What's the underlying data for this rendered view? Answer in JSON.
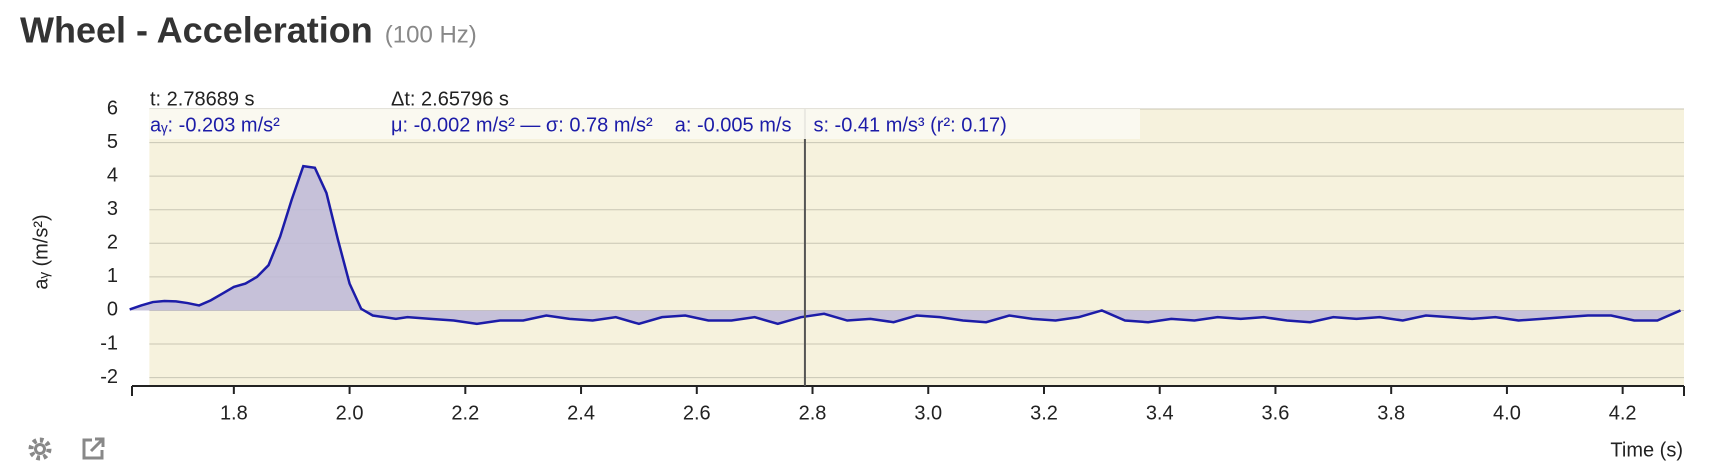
{
  "chart_data": {
    "type": "area",
    "title": "Wheel - Acceleration",
    "subtitle": "(100 Hz)",
    "y_label": "aᵧ (m/s²)",
    "x_label": "Time (s)",
    "readout": {
      "t": "t: 2.78689 s",
      "value": "aᵧ: -0.203 m/s²",
      "dt": "Δt: 2.65796 s",
      "stats": [
        "μ: -0.002 m/s² — σ: 0.78 m/s²",
        "a: -0.005 m/s",
        "s: -0.41 m/s³ (r²: 0.17)"
      ]
    },
    "cursor_x": 2.78689,
    "selection_xlim": [
      1.654,
      4.306
    ],
    "color": "#1c1ca8",
    "fill": "#bdb9d8",
    "xlim": [
      1.624,
      4.306
    ],
    "ylim": [
      -2.25,
      6
    ],
    "xticks": [
      1.8,
      {
        "value": 2,
        "label": "2.0"
      },
      2.2,
      2.4,
      2.6,
      2.8,
      {
        "value": 3,
        "label": "3.0"
      },
      3.2,
      3.4,
      3.6,
      3.8,
      {
        "value": 4,
        "label": "4.0"
      },
      4.2
    ],
    "yticks": [
      -2,
      -1,
      0,
      1,
      2,
      3,
      4,
      5,
      6
    ],
    "grid": true,
    "x": [
      1.62,
      1.64,
      1.66,
      1.68,
      1.7,
      1.72,
      1.74,
      1.76,
      1.78,
      1.8,
      1.82,
      1.84,
      1.86,
      1.88,
      1.9,
      1.92,
      1.94,
      1.96,
      1.98,
      2.0,
      2.02,
      2.04,
      2.06,
      2.08,
      2.1,
      2.14,
      2.18,
      2.22,
      2.26,
      2.3,
      2.34,
      2.38,
      2.42,
      2.46,
      2.5,
      2.54,
      2.58,
      2.62,
      2.66,
      2.7,
      2.74,
      2.78,
      2.82,
      2.86,
      2.9,
      2.94,
      2.98,
      3.02,
      3.06,
      3.1,
      3.14,
      3.18,
      3.22,
      3.26,
      3.3,
      3.34,
      3.38,
      3.42,
      3.46,
      3.5,
      3.54,
      3.58,
      3.62,
      3.66,
      3.7,
      3.74,
      3.78,
      3.82,
      3.86,
      3.9,
      3.94,
      3.98,
      4.02,
      4.06,
      4.1,
      4.14,
      4.18,
      4.22,
      4.26,
      4.3
    ],
    "values": [
      0.03,
      0.15,
      0.25,
      0.28,
      0.27,
      0.22,
      0.15,
      0.3,
      0.5,
      0.7,
      0.8,
      1.0,
      1.35,
      2.2,
      3.3,
      4.3,
      4.25,
      3.5,
      2.1,
      0.8,
      0.05,
      -0.15,
      -0.2,
      -0.25,
      -0.2,
      -0.25,
      -0.3,
      -0.4,
      -0.3,
      -0.3,
      -0.15,
      -0.25,
      -0.3,
      -0.2,
      -0.4,
      -0.2,
      -0.15,
      -0.3,
      -0.3,
      -0.2,
      -0.4,
      -0.2,
      -0.1,
      -0.3,
      -0.25,
      -0.35,
      -0.15,
      -0.2,
      -0.3,
      -0.35,
      -0.15,
      -0.25,
      -0.3,
      -0.2,
      0.0,
      -0.3,
      -0.35,
      -0.25,
      -0.3,
      -0.2,
      -0.25,
      -0.2,
      -0.3,
      -0.35,
      -0.2,
      -0.25,
      -0.2,
      -0.3,
      -0.15,
      -0.2,
      -0.25,
      -0.2,
      -0.3,
      -0.25,
      -0.2,
      -0.15,
      -0.15,
      -0.3,
      -0.3,
      0.0
    ]
  }
}
